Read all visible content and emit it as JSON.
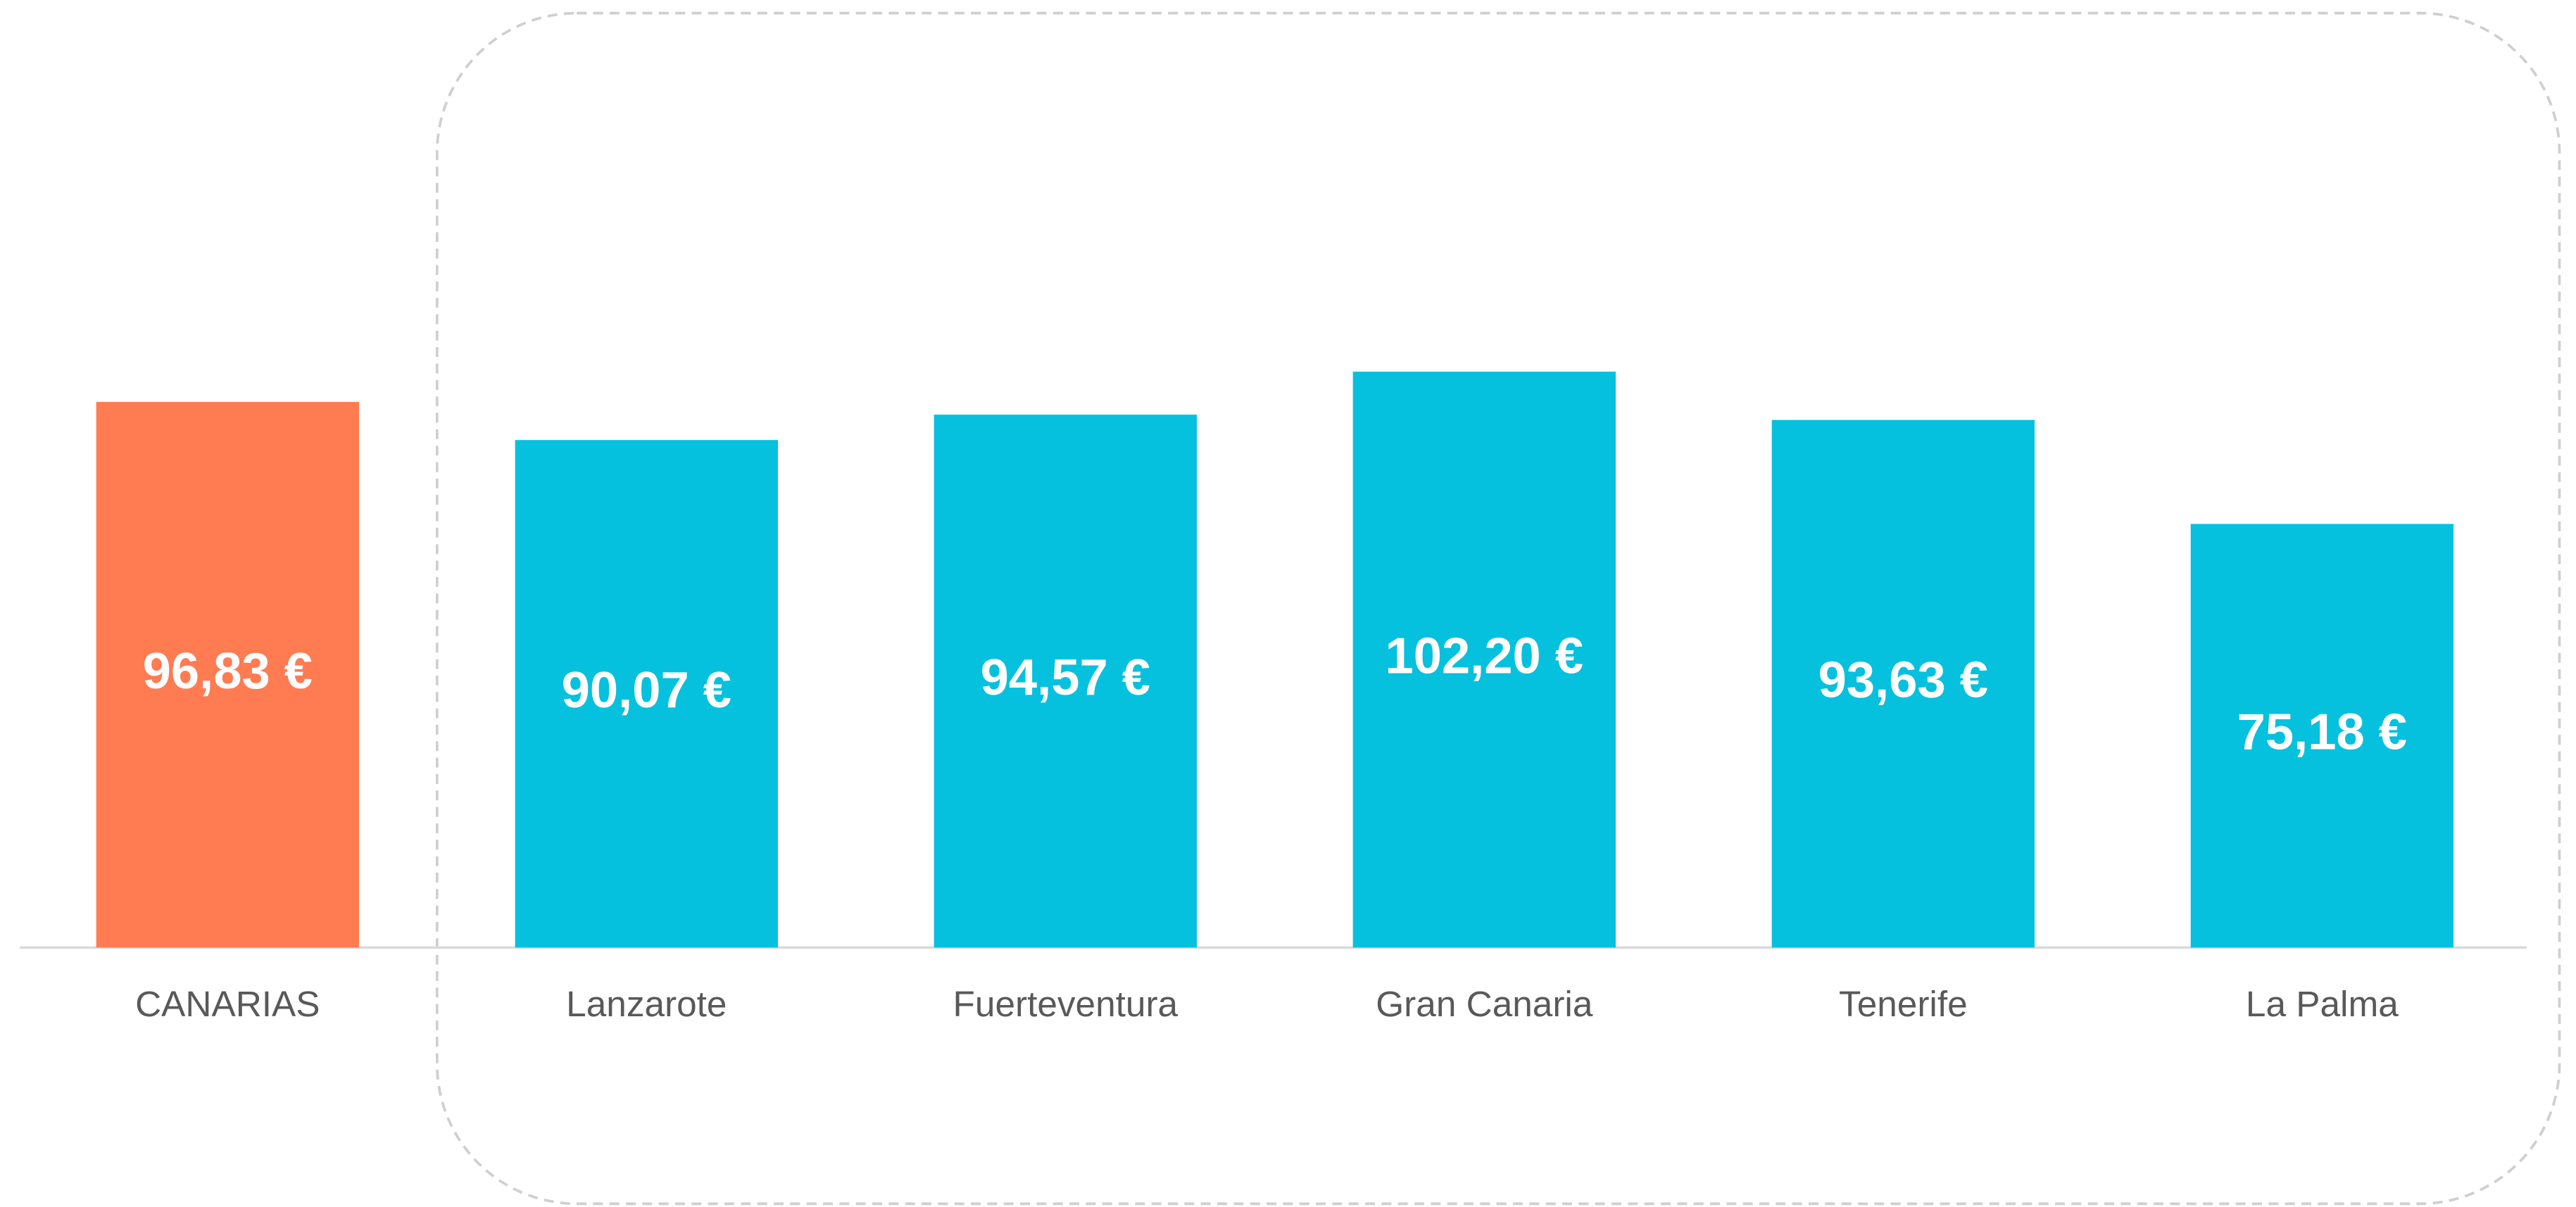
{
  "chart_data": {
    "type": "bar",
    "categories": [
      "CANARIAS",
      "Lanzarote",
      "Fuerteventura",
      "Gran Canaria",
      "Tenerife",
      "La Palma"
    ],
    "values": [
      96.83,
      90.07,
      94.57,
      102.2,
      93.63,
      75.18
    ],
    "value_labels": [
      "96,83 €",
      "90,07 €",
      "94,57 €",
      "102,20 €",
      "93,63 €",
      "75,18 €"
    ],
    "colors": [
      "#ff7b52",
      "#06c1de",
      "#06c1de",
      "#06c1de",
      "#06c1de",
      "#06c1de"
    ],
    "ylim": [
      0,
      160
    ]
  }
}
